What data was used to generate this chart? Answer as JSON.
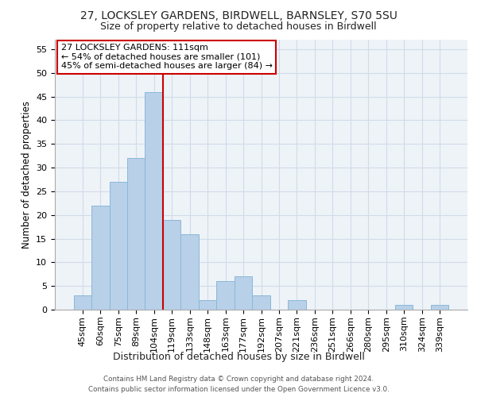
{
  "title": "27, LOCKSLEY GARDENS, BIRDWELL, BARNSLEY, S70 5SU",
  "subtitle": "Size of property relative to detached houses in Birdwell",
  "xlabel": "Distribution of detached houses by size in Birdwell",
  "ylabel": "Number of detached properties",
  "bar_labels": [
    "45sqm",
    "60sqm",
    "75sqm",
    "89sqm",
    "104sqm",
    "119sqm",
    "133sqm",
    "148sqm",
    "163sqm",
    "177sqm",
    "192sqm",
    "207sqm",
    "221sqm",
    "236sqm",
    "251sqm",
    "266sqm",
    "280sqm",
    "295sqm",
    "310sqm",
    "324sqm",
    "339sqm"
  ],
  "bar_values": [
    3,
    22,
    27,
    32,
    46,
    19,
    16,
    2,
    6,
    7,
    3,
    0,
    2,
    0,
    0,
    0,
    0,
    0,
    1,
    0,
    1
  ],
  "bar_color": "#b8d0e8",
  "bar_edge_color": "#8ab8d8",
  "vline_x_index": 4.5,
  "vline_color": "#cc0000",
  "ylim": [
    0,
    57
  ],
  "yticks": [
    0,
    5,
    10,
    15,
    20,
    25,
    30,
    35,
    40,
    45,
    50,
    55
  ],
  "annotation_title": "27 LOCKSLEY GARDENS: 111sqm",
  "annotation_line1": "← 54% of detached houses are smaller (101)",
  "annotation_line2": "45% of semi-detached houses are larger (84) →",
  "annotation_box_color": "#ffffff",
  "annotation_box_edge": "#cc0000",
  "footer1": "Contains HM Land Registry data © Crown copyright and database right 2024.",
  "footer2": "Contains public sector information licensed under the Open Government Licence v3.0.",
  "bg_color": "#eef3f8",
  "grid_color": "#d0dce8",
  "title_fontsize": 10,
  "subtitle_fontsize": 9,
  "ylabel_fontsize": 8.5,
  "xlabel_fontsize": 9,
  "tick_fontsize": 8,
  "annot_fontsize": 8
}
